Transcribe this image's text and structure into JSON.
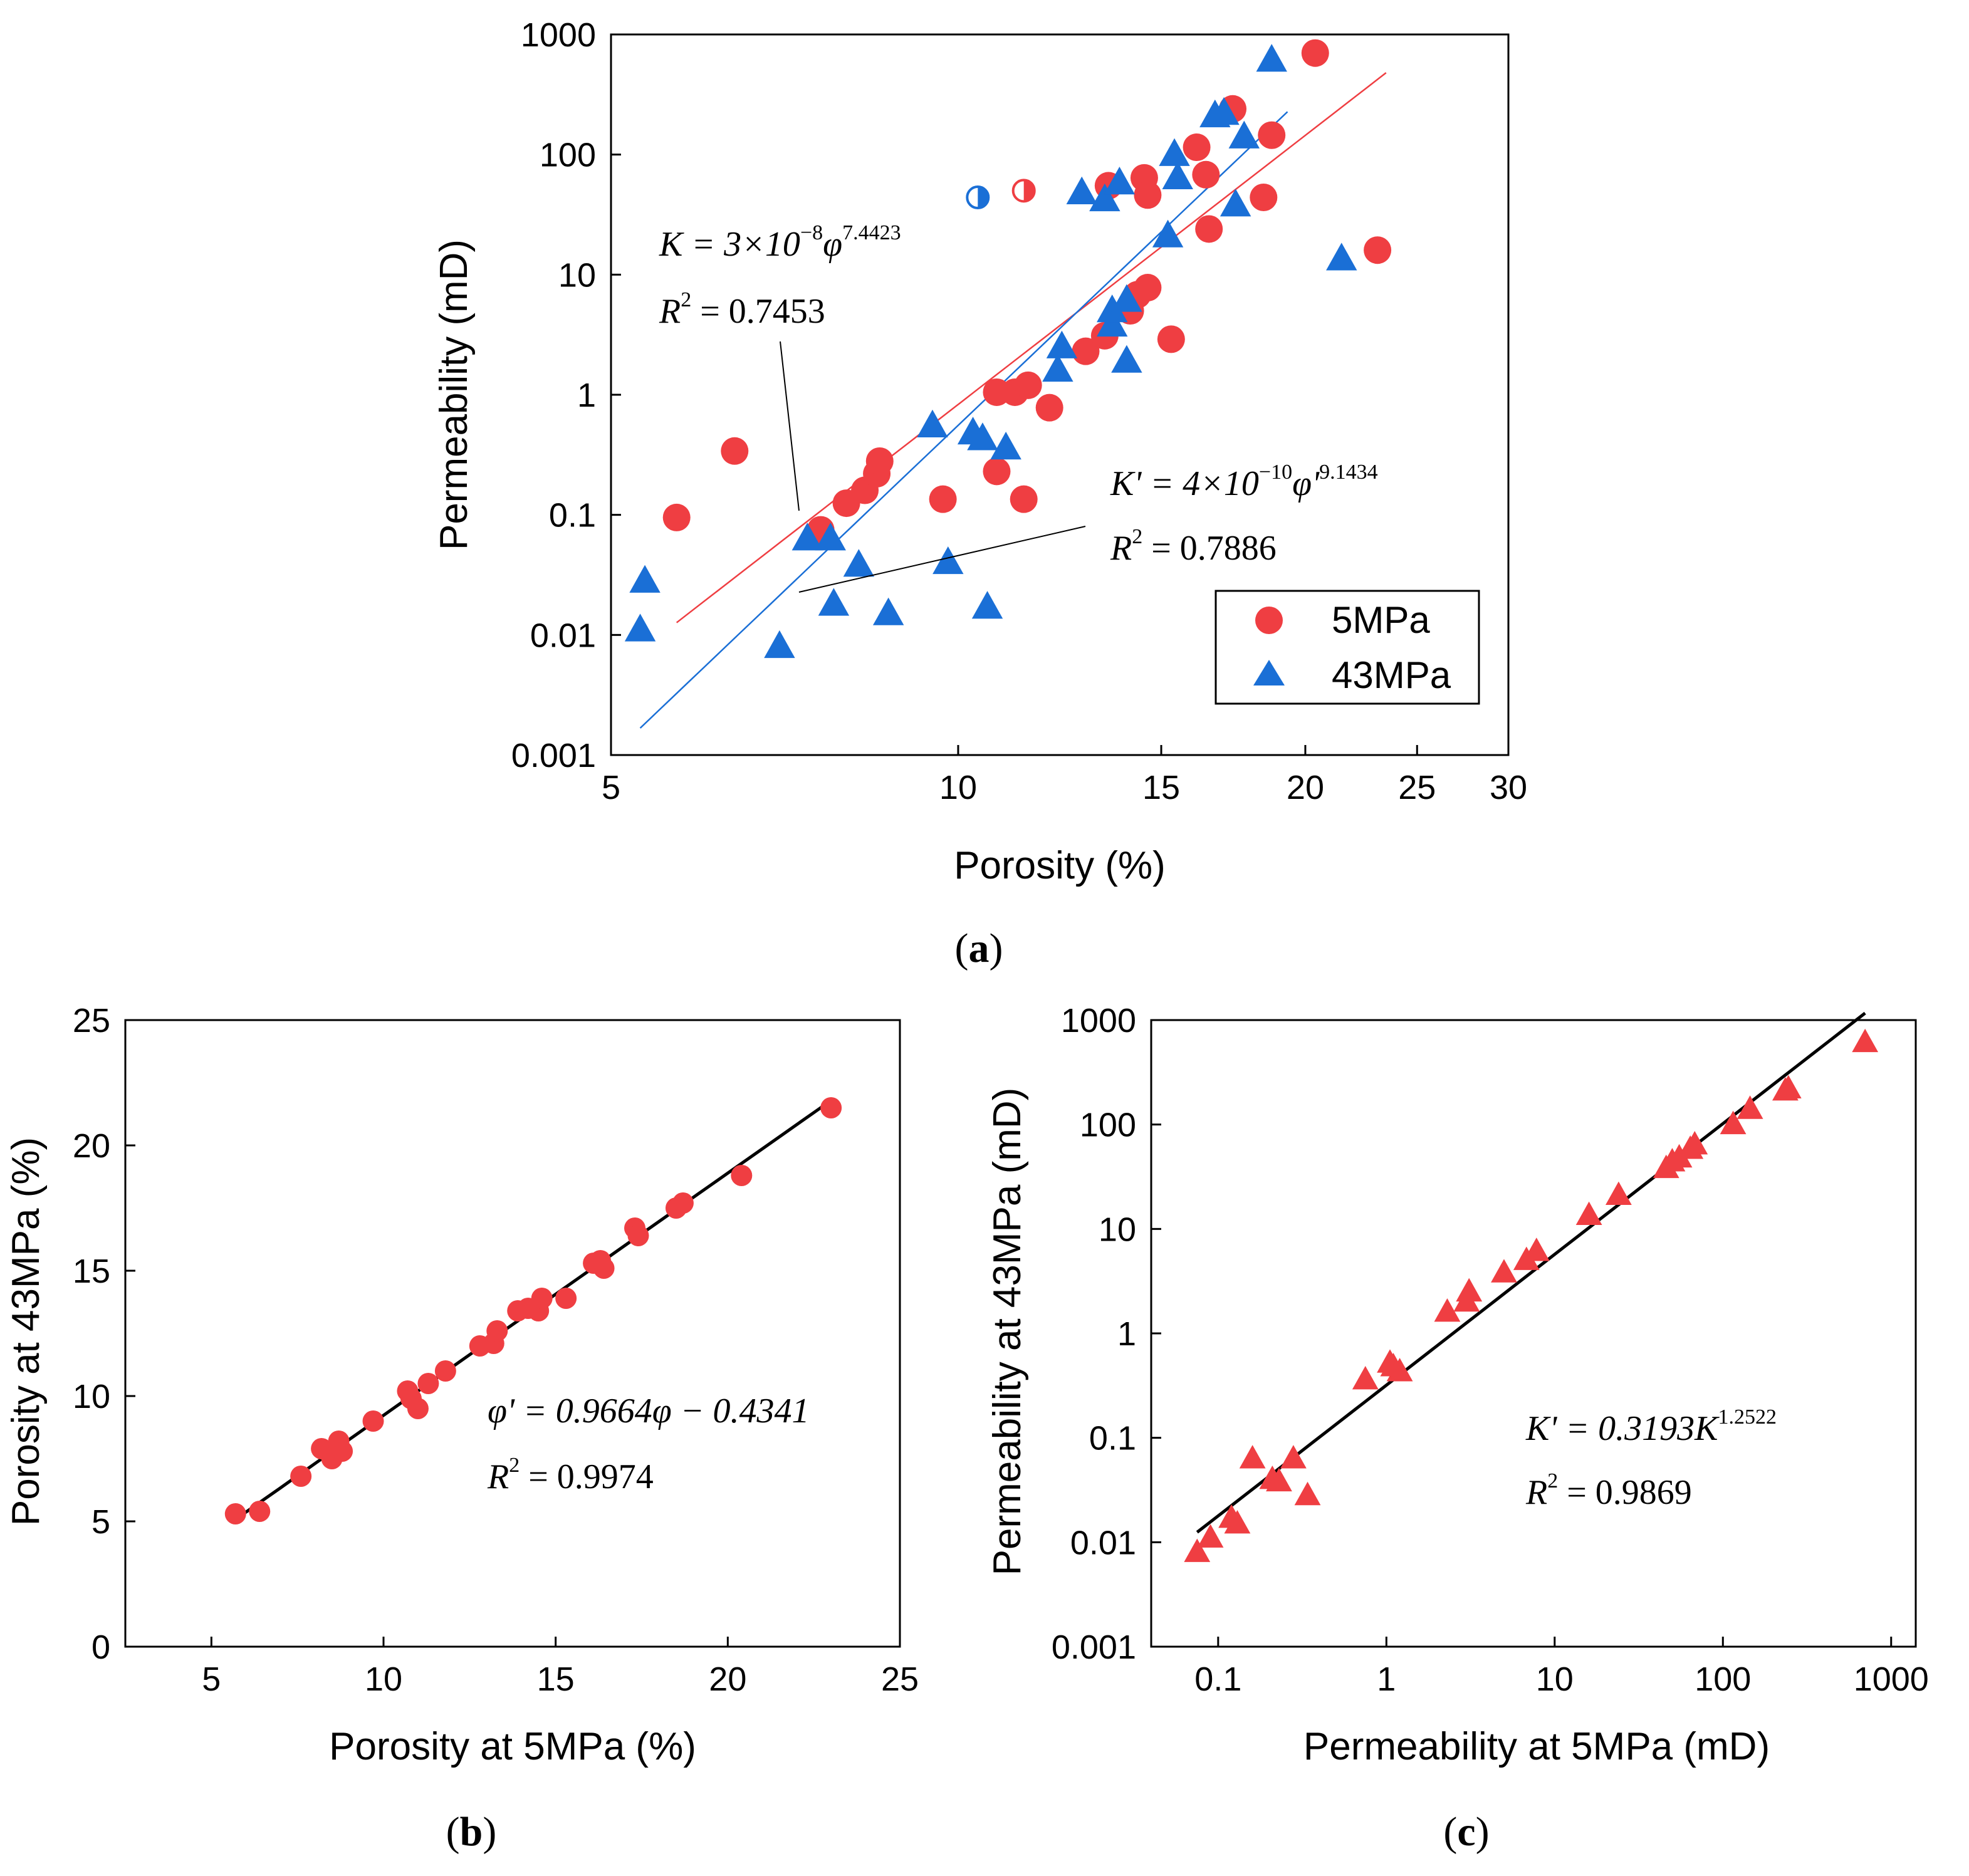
{
  "chart_data": [
    {
      "panel": "(a)",
      "type": "scatter",
      "xscale": "log",
      "yscale": "log",
      "xlabel": "Porosity (%)",
      "ylabel": "Permeability (mD)",
      "xlim": [
        5,
        30
      ],
      "ylim": [
        0.001,
        1000
      ],
      "xticks": [
        5,
        10,
        15,
        20,
        25,
        30
      ],
      "xtick_labels": [
        "5",
        "10",
        "15",
        "20",
        "25",
        "30"
      ],
      "yticks": [
        0.001,
        0.01,
        0.1,
        1,
        10,
        100,
        1000
      ],
      "ytick_labels": [
        "0.001",
        "0.01",
        "0.1",
        "1",
        "10",
        "100",
        "1000"
      ],
      "legend": {
        "position": "bottom-right",
        "entries": [
          "5MPa",
          "43MPa"
        ]
      },
      "series": [
        {
          "name": "5MPa",
          "marker": "circle",
          "color": "#ef3e42",
          "points": [
            [
              5.7,
              0.095
            ],
            [
              6.4,
              0.34
            ],
            [
              7.6,
              0.075
            ],
            [
              8.0,
              0.125
            ],
            [
              8.3,
              0.16
            ],
            [
              8.5,
              0.22
            ],
            [
              8.55,
              0.28
            ],
            [
              9.7,
              0.135
            ],
            [
              10.8,
              0.23
            ],
            [
              10.8,
              1.05
            ],
            [
              11.2,
              1.05
            ],
            [
              11.5,
              1.2
            ],
            [
              11.4,
              0.135
            ],
            [
              12.0,
              0.78
            ],
            [
              12.9,
              2.3
            ],
            [
              13.4,
              3.1
            ],
            [
              14.1,
              5.0
            ],
            [
              14.3,
              6.8
            ],
            [
              14.6,
              7.8
            ],
            [
              15.3,
              2.9
            ],
            [
              13.5,
              55
            ],
            [
              14.5,
              64
            ],
            [
              14.6,
              46
            ],
            [
              16.1,
              115
            ],
            [
              16.4,
              68
            ],
            [
              16.5,
              24
            ],
            [
              17.3,
              240
            ],
            [
              18.4,
              44
            ],
            [
              18.7,
              145
            ],
            [
              20.4,
              700
            ],
            [
              23.1,
              16
            ]
          ]
        },
        {
          "name": "43MPa",
          "marker": "triangle",
          "color": "#1a6fd6",
          "points": [
            [
              5.3,
              0.011
            ],
            [
              5.35,
              0.028
            ],
            [
              7.0,
              0.008
            ],
            [
              7.4,
              0.063
            ],
            [
              7.75,
              0.063
            ],
            [
              7.8,
              0.018
            ],
            [
              8.2,
              0.038
            ],
            [
              8.7,
              0.015
            ],
            [
              9.5,
              0.55
            ],
            [
              9.8,
              0.04
            ],
            [
              10.3,
              0.48
            ],
            [
              10.5,
              0.43
            ],
            [
              10.6,
              0.017
            ],
            [
              11.0,
              0.36
            ],
            [
              12.2,
              1.6
            ],
            [
              12.3,
              2.5
            ],
            [
              12.8,
              48
            ],
            [
              13.4,
              42
            ],
            [
              13.6,
              3.8
            ],
            [
              13.6,
              5.0
            ],
            [
              13.8,
              58
            ],
            [
              14.0,
              6.1
            ],
            [
              14.0,
              1.9
            ],
            [
              15.2,
              21
            ],
            [
              15.4,
              100
            ],
            [
              15.5,
              64
            ],
            [
              16.7,
              210
            ],
            [
              17.0,
              220
            ],
            [
              17.4,
              38
            ],
            [
              17.7,
              140
            ],
            [
              18.7,
              610
            ],
            [
              21.5,
              13.5
            ]
          ]
        },
        {
          "name": "half-filled red",
          "marker": "circle-half",
          "color": "#ef3e42",
          "points": [
            [
              11.4,
              50
            ]
          ]
        },
        {
          "name": "half-filled blue",
          "marker": "circle-half",
          "color": "#1a6fd6",
          "points": [
            [
              10.4,
              44
            ]
          ]
        }
      ],
      "fits": [
        {
          "series": "5MPa",
          "a": 3e-08,
          "b": 7.4423,
          "x_range": [
            5.7,
            23.5
          ],
          "color": "#ef3e42"
        },
        {
          "series": "43MPa",
          "a": 4e-10,
          "b": 9.1434,
          "x_range": [
            5.3,
            19.3
          ],
          "color": "#1a6fd6"
        }
      ],
      "annotations": [
        {
          "lines": [
            "K = 3×10−8 φ7.4423",
            "R2 = 0.7453"
          ],
          "points_to": "5MPa fit"
        },
        {
          "lines": [
            "K' = 4×10−10 φ'9.1434",
            "R2 = 0.7886"
          ],
          "points_to": "43MPa fit"
        }
      ]
    },
    {
      "panel": "(b)",
      "type": "scatter",
      "xlabel": "Porosity at 5MPa (%)",
      "ylabel": "Porosity at 43MPa (%)",
      "xlim": [
        2.5,
        25
      ],
      "ylim": [
        0,
        25
      ],
      "xticks": [
        5,
        10,
        15,
        20,
        25
      ],
      "xtick_labels": [
        "5",
        "10",
        "15",
        "20",
        "25"
      ],
      "yticks": [
        0,
        5,
        10,
        15,
        20,
        25
      ],
      "ytick_labels": [
        "0",
        "5",
        "10",
        "15",
        "20",
        "25"
      ],
      "series": [
        {
          "name": "points",
          "marker": "circle",
          "color": "#ef3e42",
          "points": [
            [
              5.7,
              5.3
            ],
            [
              6.4,
              5.4
            ],
            [
              7.6,
              6.8
            ],
            [
              8.2,
              7.9
            ],
            [
              8.5,
              7.5
            ],
            [
              8.7,
              8.2
            ],
            [
              8.8,
              7.8
            ],
            [
              9.7,
              9.0
            ],
            [
              10.7,
              10.2
            ],
            [
              10.8,
              9.9
            ],
            [
              11.0,
              9.5
            ],
            [
              11.3,
              10.5
            ],
            [
              11.8,
              11.0
            ],
            [
              12.8,
              12.0
            ],
            [
              13.2,
              12.1
            ],
            [
              13.3,
              12.6
            ],
            [
              13.9,
              13.4
            ],
            [
              14.2,
              13.5
            ],
            [
              14.5,
              13.4
            ],
            [
              14.6,
              13.9
            ],
            [
              15.3,
              13.9
            ],
            [
              16.1,
              15.3
            ],
            [
              16.3,
              15.4
            ],
            [
              16.4,
              15.1
            ],
            [
              17.3,
              16.7
            ],
            [
              17.4,
              16.4
            ],
            [
              18.5,
              17.5
            ],
            [
              18.7,
              17.7
            ],
            [
              20.4,
              18.8
            ],
            [
              23.0,
              21.5
            ]
          ]
        }
      ],
      "fits": [
        {
          "type": "linear",
          "slope": 0.9664,
          "intercept": -0.4341,
          "x_range": [
            5.7,
            23.0
          ],
          "color": "#000000"
        }
      ],
      "annotations": [
        {
          "lines": [
            "φ' = 0.9664φ − 0.4341",
            "R2 = 0.9974"
          ]
        }
      ]
    },
    {
      "panel": "(c)",
      "type": "scatter",
      "xscale": "log",
      "yscale": "log",
      "xlabel": "Permeability at 5MPa (mD)",
      "ylabel": "Permeability at 43MPa (mD)",
      "xlim": [
        0.04,
        1400
      ],
      "ylim": [
        0.001,
        1000
      ],
      "xticks": [
        0.1,
        1,
        10,
        100,
        1000
      ],
      "xtick_labels": [
        "0.1",
        "1",
        "10",
        "100",
        "1000"
      ],
      "yticks": [
        0.001,
        0.01,
        0.1,
        1,
        10,
        100,
        1000
      ],
      "ytick_labels": [
        "0.001",
        "0.01",
        "0.1",
        "1",
        "10",
        "100",
        "1000"
      ],
      "series": [
        {
          "name": "points",
          "marker": "triangle",
          "color": "#ef3e42",
          "points": [
            [
              0.075,
              0.008
            ],
            [
              0.09,
              0.011
            ],
            [
              0.12,
              0.017
            ],
            [
              0.13,
              0.015
            ],
            [
              0.16,
              0.063
            ],
            [
              0.21,
              0.04
            ],
            [
              0.23,
              0.038
            ],
            [
              0.28,
              0.063
            ],
            [
              0.34,
              0.028
            ],
            [
              0.75,
              0.36
            ],
            [
              1.05,
              0.52
            ],
            [
              1.1,
              0.48
            ],
            [
              1.2,
              0.43
            ],
            [
              2.3,
              1.6
            ],
            [
              3.0,
              2.0
            ],
            [
              3.1,
              2.5
            ],
            [
              5.0,
              3.8
            ],
            [
              6.8,
              5.0
            ],
            [
              7.8,
              6.1
            ],
            [
              16,
              13.5
            ],
            [
              24,
              21
            ],
            [
              46,
              38
            ],
            [
              50,
              44
            ],
            [
              55,
              48
            ],
            [
              64,
              58
            ],
            [
              68,
              64
            ],
            [
              115,
              100
            ],
            [
              145,
              140
            ],
            [
              235,
              210
            ],
            [
              245,
              220
            ],
            [
              700,
              610
            ]
          ]
        }
      ],
      "fits": [
        {
          "a": 0.3193,
          "b": 1.2522,
          "x_range": [
            0.075,
            700
          ],
          "color": "#000000"
        }
      ],
      "annotations": [
        {
          "lines": [
            "K' = 0.3193K1.2522",
            "R2 = 0.9869"
          ]
        }
      ]
    }
  ],
  "labels": {
    "panel_a": "a",
    "panel_b": "b",
    "panel_c": "c",
    "legend_5mpa": "5MPa",
    "legend_43mpa": "43MPa",
    "eq_a1_line1": "K = 3×10",
    "eq_a1_exp1": "−8",
    "eq_a1_phi": "φ",
    "eq_a1_exp2": "7.4423",
    "eq_a1_r2": "R",
    "eq_a1_r2_sup": "2",
    "eq_a1_r2_val": " = 0.7453",
    "eq_a2_line1": "K' = 4×10",
    "eq_a2_exp1": "−10",
    "eq_a2_phi": "φ'",
    "eq_a2_exp2": "9.1434",
    "eq_a2_r2": "R",
    "eq_a2_r2_sup": "2",
    "eq_a2_r2_val": " = 0.7886",
    "eq_b_line1": "φ' = 0.9664φ − 0.4341",
    "eq_b_r2": "R",
    "eq_b_r2_sup": "2",
    "eq_b_r2_val": " = 0.9974",
    "eq_c_line1": "K' = 0.3193K",
    "eq_c_exp": "1.2522",
    "eq_c_r2": "R",
    "eq_c_r2_sup": "2",
    "eq_c_r2_val": " = 0.9869"
  }
}
